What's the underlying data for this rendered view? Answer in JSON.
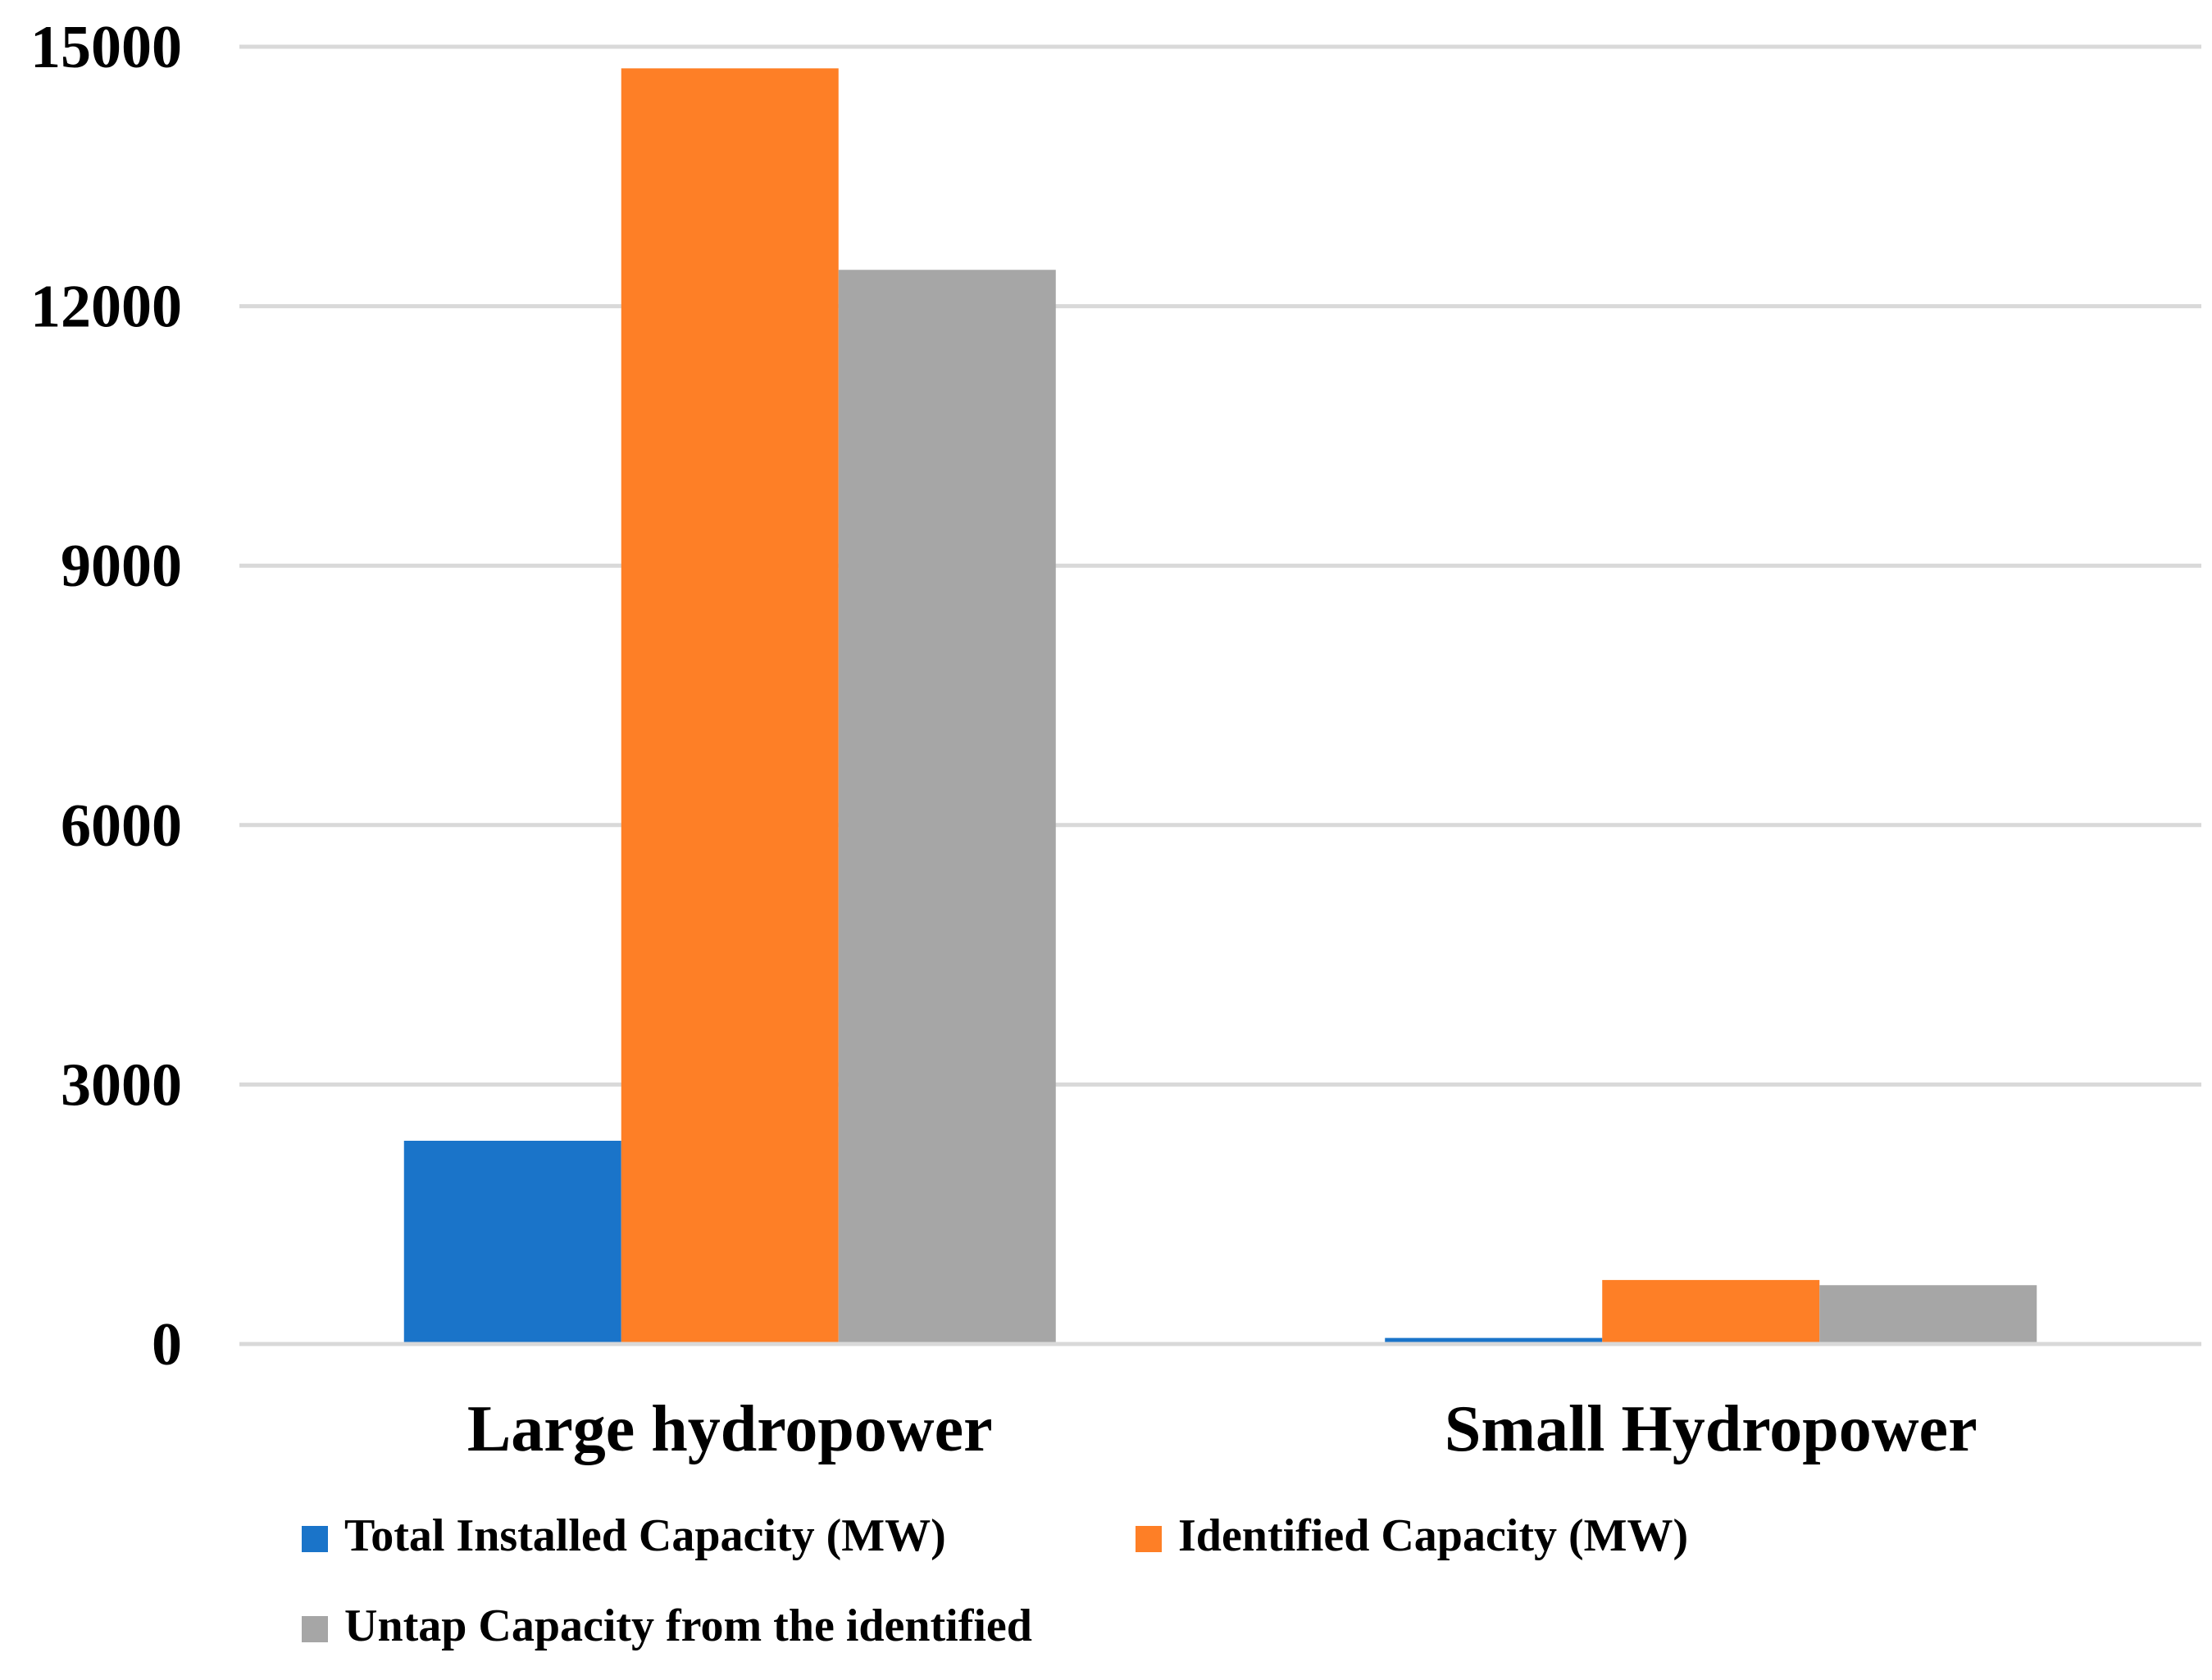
{
  "chart_data": {
    "type": "bar",
    "title": "",
    "xlabel": "",
    "ylabel": "",
    "ylim": [
      0,
      15000
    ],
    "yticks": [
      0,
      3000,
      6000,
      9000,
      12000,
      15000
    ],
    "grid": true,
    "legend_position": "bottom",
    "categories": [
      "Large hydropower",
      "Small Hydropower"
    ],
    "series": [
      {
        "name": "Total Installed Capacity (MW)",
        "color": "#1a74c9",
        "values": [
          2350,
          70
        ]
      },
      {
        "name": "Identified Capacity (MW)",
        "color": "#fe7f26",
        "values": [
          14750,
          740
        ]
      },
      {
        "name": "Untap Capacity from the identified",
        "color": "#a6a6a6",
        "values": [
          12420,
          680
        ]
      }
    ]
  }
}
